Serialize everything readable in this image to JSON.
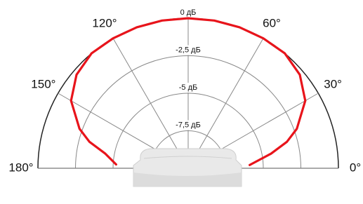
{
  "chart_data": {
    "type": "polar",
    "x": [
      3,
      10,
      15,
      20,
      30,
      40,
      50,
      60,
      70,
      80,
      90,
      100,
      110,
      120,
      130,
      140,
      150,
      160,
      165,
      170,
      177
    ],
    "values": [
      -5.9,
      -4.4,
      -3.2,
      -2.3,
      -1.0,
      -0.3,
      0,
      0,
      0,
      0,
      0,
      0,
      0,
      0,
      0,
      -0.3,
      -1.0,
      -2.3,
      -3.2,
      -4.4,
      -5.2
    ],
    "color": "#e8141b",
    "xlim": [
      0,
      180
    ],
    "xticks": [
      {
        "value": 0,
        "label": "0°"
      },
      {
        "value": 30,
        "label": "30°"
      },
      {
        "value": 60,
        "label": "60°"
      },
      {
        "value": 90,
        "label": ""
      },
      {
        "value": 120,
        "label": "120°"
      },
      {
        "value": 150,
        "label": "150°"
      },
      {
        "value": 180,
        "label": "180°"
      }
    ],
    "rlim": [
      -10,
      0
    ],
    "rticks": [
      {
        "value": 0,
        "label": "0 дБ"
      },
      {
        "value": -2.5,
        "label": "-2,5 дБ"
      },
      {
        "value": -5,
        "label": "-5 дБ"
      },
      {
        "value": -7.5,
        "label": "-7,5 дБ"
      }
    ]
  }
}
